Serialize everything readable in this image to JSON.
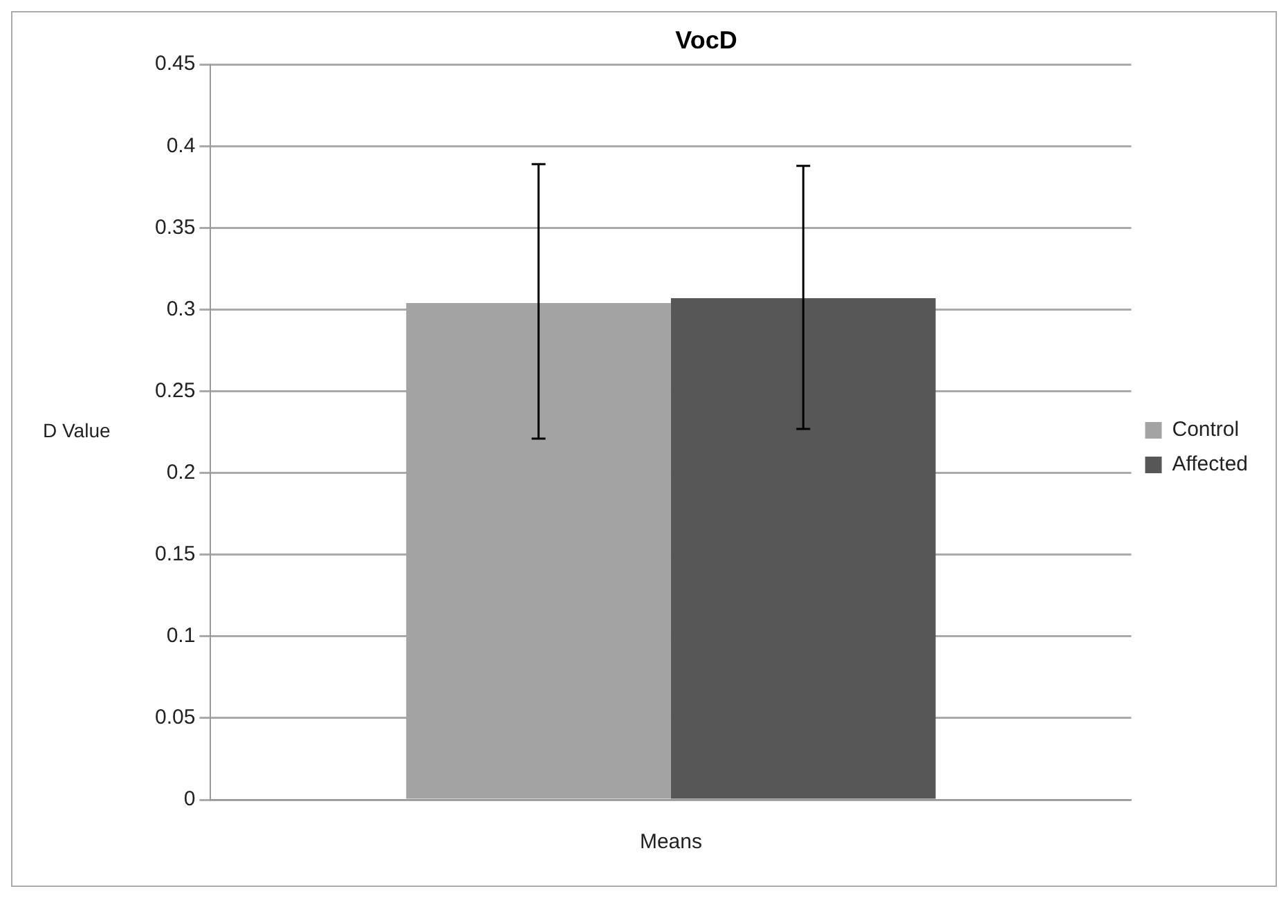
{
  "chart_data": {
    "type": "bar",
    "title": "VocD",
    "ylabel": "D Value",
    "categories": [
      "Means"
    ],
    "series": [
      {
        "name": "Control",
        "color": "#a3a3a3",
        "values": [
          0.304
        ],
        "errors": [
          [
            0.221,
            0.389
          ]
        ]
      },
      {
        "name": "Affected",
        "color": "#575757",
        "values": [
          0.307
        ],
        "errors": [
          [
            0.227,
            0.388
          ]
        ]
      }
    ],
    "ylim": [
      0,
      0.45
    ],
    "yticks": [
      0,
      0.05,
      0.1,
      0.15,
      0.2,
      0.25,
      0.3,
      0.35,
      0.4,
      0.45
    ],
    "grid": "y",
    "legend": "right"
  }
}
